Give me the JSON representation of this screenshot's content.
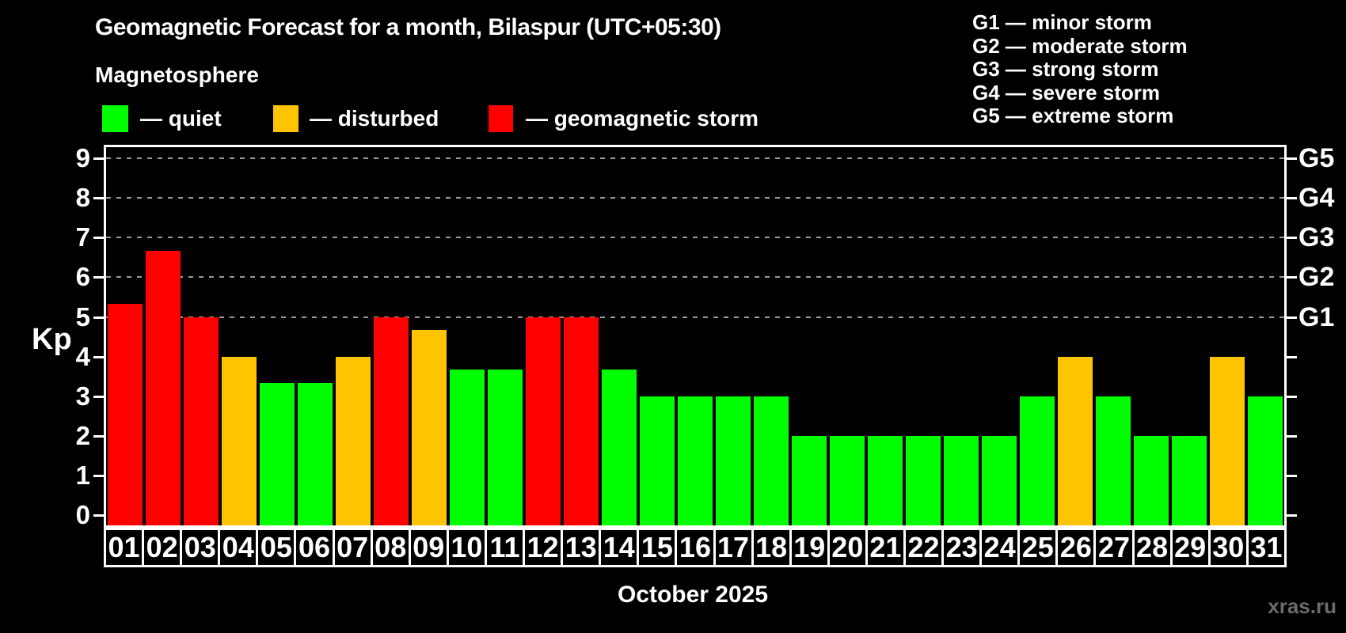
{
  "header": {
    "title": "Geomagnetic Forecast for a month, Bilaspur (UTC+05:30)",
    "subtitle": "Magnetosphere"
  },
  "legend": {
    "items": [
      {
        "key": "quiet",
        "label": "— quiet",
        "color": "#00ff00"
      },
      {
        "key": "disturbed",
        "label": "— disturbed",
        "color": "#ffc400"
      },
      {
        "key": "storm",
        "label": "— geomagnetic storm",
        "color": "#ff0000"
      }
    ]
  },
  "g_legend": {
    "items": [
      {
        "label": "G1 — minor storm"
      },
      {
        "label": "G2 — moderate storm"
      },
      {
        "label": "G3 — strong storm"
      },
      {
        "label": "G4 — severe storm"
      },
      {
        "label": "G5 — extreme storm"
      }
    ]
  },
  "watermark": "xras.ru",
  "chart_data": {
    "type": "bar",
    "title": "Geomagnetic Forecast for a month, Bilaspur (UTC+05:30)",
    "xlabel": "October 2025",
    "ylabel": "Kp",
    "ylim": [
      0,
      9
    ],
    "yticks": [
      0,
      1,
      2,
      3,
      4,
      5,
      6,
      7,
      8,
      9
    ],
    "grid": "horizontal dashed gray lines at Kp 5-9",
    "gridline_kp": [
      5,
      6,
      7,
      8,
      9
    ],
    "right_axis": [
      {
        "kp": 5,
        "label": "G1"
      },
      {
        "kp": 6,
        "label": "G2"
      },
      {
        "kp": 7,
        "label": "G3"
      },
      {
        "kp": 8,
        "label": "G4"
      },
      {
        "kp": 9,
        "label": "G5"
      }
    ],
    "categories": [
      "01",
      "02",
      "03",
      "04",
      "05",
      "06",
      "07",
      "08",
      "09",
      "10",
      "11",
      "12",
      "13",
      "14",
      "15",
      "16",
      "17",
      "18",
      "19",
      "20",
      "21",
      "22",
      "23",
      "24",
      "25",
      "26",
      "27",
      "28",
      "29",
      "30",
      "31"
    ],
    "values": [
      5.33,
      6.67,
      5.0,
      4.0,
      3.33,
      3.33,
      4.0,
      5.0,
      4.67,
      3.67,
      3.67,
      5.0,
      5.0,
      3.67,
      3.0,
      3.0,
      3.0,
      3.0,
      2.0,
      2.0,
      2.0,
      2.0,
      2.0,
      2.0,
      3.0,
      4.0,
      3.0,
      2.0,
      2.0,
      4.0,
      3.0
    ],
    "statuses": [
      "storm",
      "storm",
      "storm",
      "disturbed",
      "quiet",
      "quiet",
      "disturbed",
      "storm",
      "disturbed",
      "quiet",
      "quiet",
      "storm",
      "storm",
      "quiet",
      "quiet",
      "quiet",
      "quiet",
      "quiet",
      "quiet",
      "quiet",
      "quiet",
      "quiet",
      "quiet",
      "quiet",
      "quiet",
      "disturbed",
      "quiet",
      "quiet",
      "quiet",
      "disturbed",
      "quiet"
    ],
    "status_colors": {
      "quiet": "#00ff00",
      "disturbed": "#ffc400",
      "storm": "#ff0000"
    }
  }
}
